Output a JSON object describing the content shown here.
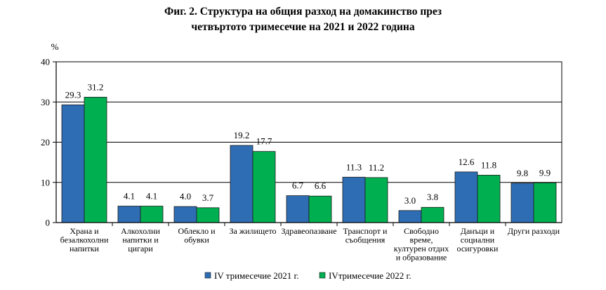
{
  "chart_data": {
    "type": "bar",
    "title_lines": [
      "Фиг. 2. Структура на общия разход на домакинство през",
      "четвъртото тримесечие на 2021 и 2022 година"
    ],
    "ylabel": "%",
    "ylim": [
      0,
      40
    ],
    "yticks": [
      0,
      10,
      20,
      30,
      40
    ],
    "grid": true,
    "categories": [
      [
        "Храна и",
        "безалкохолни",
        "напитки"
      ],
      [
        "Алкохолни",
        "напитки и",
        "цигари"
      ],
      [
        "Облекло и",
        "обувки"
      ],
      [
        "За жилището"
      ],
      [
        "Здравеопазване"
      ],
      [
        "Транспорт и",
        "съобщения"
      ],
      [
        "Свободно",
        "време,",
        "културен отдих",
        "и образование"
      ],
      [
        "Данъци и",
        "социални",
        "осигуровки"
      ],
      [
        "Други разходи"
      ]
    ],
    "series": [
      {
        "name": "IV тримесечие 2021 г.",
        "color": "#2e6db4",
        "values": [
          29.3,
          4.1,
          4.0,
          19.2,
          6.7,
          11.3,
          3.0,
          12.6,
          9.8
        ],
        "labels": [
          "29.3",
          "4.1",
          "4.0",
          "19.2",
          "6.7",
          "11.3",
          "3.0",
          "12.6",
          "9.8"
        ]
      },
      {
        "name": "IVтримесечие 2022 г.",
        "color": "#00b050",
        "values": [
          31.2,
          4.1,
          3.7,
          17.7,
          6.6,
          11.2,
          3.8,
          11.8,
          9.9
        ],
        "labels": [
          "31.2",
          "4.1",
          "3.7",
          "17.7",
          "6.6",
          "11.2",
          "3.8",
          "11.8",
          "9.9"
        ]
      }
    ],
    "legend_position": "bottom-center"
  }
}
